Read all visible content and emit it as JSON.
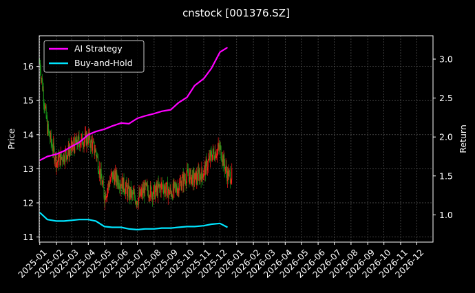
{
  "chart_data": {
    "type": "line",
    "title": "cnstock [001376.SZ]",
    "ylabel": "Price",
    "ylabel_right": "Return",
    "xlabel": "",
    "grid": true,
    "legend_placement": "top-left",
    "colors": {
      "background": "#000000",
      "grid": "#666666",
      "axis": "#ffffff",
      "up_candle": "#ff1a1a",
      "down_candle": "#1a9e1a",
      "ai_strategy": "#ff00ff",
      "buy_and_hold": "#00e5ff"
    },
    "x_ticks": [
      "2025-01",
      "2025-02",
      "2025-03",
      "2025-04",
      "2025-05",
      "2025-06",
      "2025-07",
      "2025-08",
      "2025-09",
      "2025-10",
      "2025-11",
      "2025-12",
      "2026-01",
      "2026-02",
      "2026-03",
      "2026-04",
      "2026-05",
      "2026-06",
      "2026-07",
      "2026-08",
      "2026-09",
      "2026-10",
      "2026-11",
      "2026-12"
    ],
    "xlim": [
      "2024-12-31",
      "2026-12-31"
    ],
    "y_left": {
      "ylim": [
        10.85,
        16.9
      ],
      "ticks": [
        "11",
        "12",
        "13",
        "14",
        "15",
        "16"
      ]
    },
    "y_right": {
      "ylim": [
        0.65,
        3.3
      ],
      "ticks": [
        "1.0",
        "1.5",
        "2.0",
        "2.5",
        "3.0"
      ]
    },
    "legend": [
      "AI Strategy",
      "Buy-and-Hold"
    ],
    "price_series": {
      "name": "Price",
      "dates": [
        "2025-01-01",
        "2025-01-15",
        "2025-02-01",
        "2025-02-15",
        "2025-03-01",
        "2025-03-15",
        "2025-04-01",
        "2025-04-15",
        "2025-05-01",
        "2025-05-15",
        "2025-06-01",
        "2025-06-15",
        "2025-07-01",
        "2025-07-15",
        "2025-08-01",
        "2025-08-15",
        "2025-09-01",
        "2025-09-15",
        "2025-10-01",
        "2025-10-15",
        "2025-11-01",
        "2025-11-15",
        "2025-12-01",
        "2025-12-15"
      ],
      "values": [
        16.1,
        14.2,
        13.2,
        13.4,
        13.6,
        13.8,
        13.9,
        13.5,
        12.2,
        12.8,
        12.6,
        12.3,
        12.1,
        12.4,
        12.3,
        12.5,
        12.3,
        12.5,
        12.8,
        12.7,
        12.9,
        13.4,
        13.6,
        12.8
      ]
    },
    "series": [
      {
        "name": "AI Strategy",
        "dates": [
          "2025-01-01",
          "2025-01-15",
          "2025-02-01",
          "2025-02-15",
          "2025-03-01",
          "2025-03-15",
          "2025-04-01",
          "2025-04-15",
          "2025-05-01",
          "2025-05-15",
          "2025-06-01",
          "2025-06-15",
          "2025-07-01",
          "2025-07-15",
          "2025-08-01",
          "2025-08-15",
          "2025-09-01",
          "2025-09-15",
          "2025-10-01",
          "2025-10-15",
          "2025-11-01",
          "2025-11-15",
          "2025-12-01",
          "2025-12-15"
        ],
        "values": [
          1.7,
          1.75,
          1.78,
          1.82,
          1.88,
          1.93,
          2.03,
          2.07,
          2.1,
          2.14,
          2.18,
          2.17,
          2.24,
          2.27,
          2.3,
          2.33,
          2.35,
          2.44,
          2.51,
          2.66,
          2.75,
          2.88,
          3.09,
          3.15
        ]
      },
      {
        "name": "Buy-and-Hold",
        "dates": [
          "2025-01-01",
          "2025-01-15",
          "2025-02-01",
          "2025-02-15",
          "2025-03-01",
          "2025-03-15",
          "2025-04-01",
          "2025-04-15",
          "2025-05-01",
          "2025-05-15",
          "2025-06-01",
          "2025-06-15",
          "2025-07-01",
          "2025-07-15",
          "2025-08-01",
          "2025-08-15",
          "2025-09-01",
          "2025-09-15",
          "2025-10-01",
          "2025-10-15",
          "2025-11-01",
          "2025-11-15",
          "2025-12-01",
          "2025-12-15"
        ],
        "values": [
          1.03,
          0.94,
          0.92,
          0.92,
          0.93,
          0.94,
          0.94,
          0.92,
          0.85,
          0.84,
          0.84,
          0.82,
          0.81,
          0.82,
          0.82,
          0.83,
          0.83,
          0.84,
          0.85,
          0.85,
          0.86,
          0.88,
          0.89,
          0.84
        ]
      }
    ]
  }
}
